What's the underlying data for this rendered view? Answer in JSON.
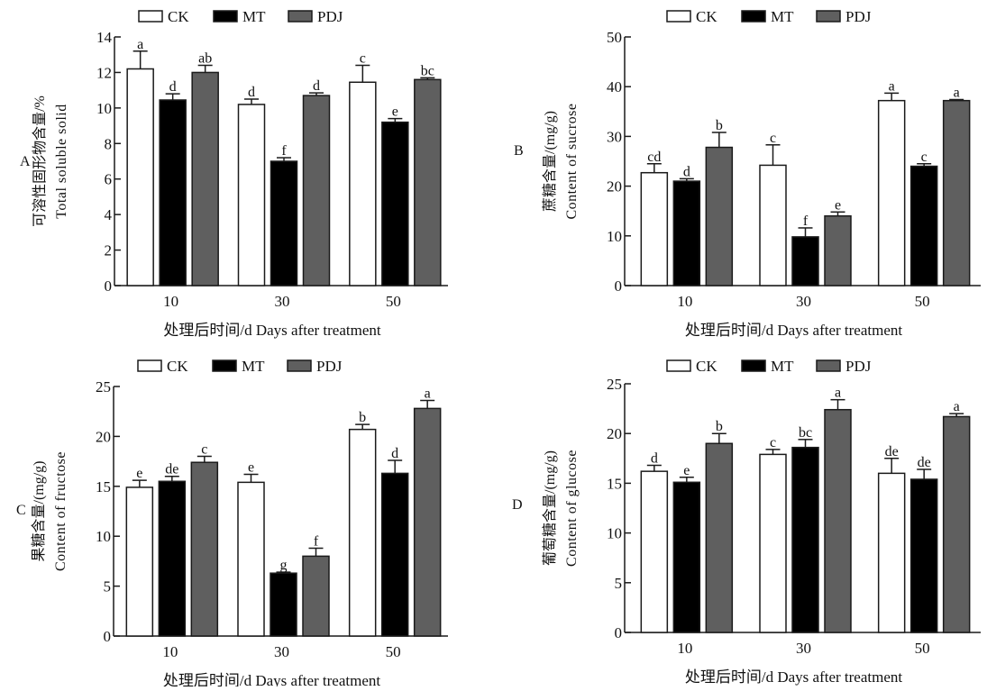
{
  "legend": [
    "CK",
    "MT",
    "PDJ"
  ],
  "colors": {
    "CK": "#ffffff",
    "MT": "#000000",
    "PDJ": "#5f5f5f",
    "stroke": "#1a1a1a"
  },
  "chart_data": [
    {
      "type": "bar",
      "panel": "A",
      "categories": [
        "10",
        "30",
        "50"
      ],
      "xlabel": "处理后时间/d Days after treatment",
      "ylabel_cn": "可溶性固形物含量/%",
      "ylabel_en": "Total soluble solid",
      "ylim": [
        0,
        14
      ],
      "yticks": [
        0,
        2,
        4,
        6,
        8,
        10,
        12,
        14
      ],
      "grid": false,
      "legend_position": "top",
      "series": [
        {
          "name": "CK",
          "values": [
            12.2,
            10.2,
            11.45
          ],
          "error": [
            1.0,
            0.3,
            0.95
          ],
          "letters": [
            "a",
            "d",
            "c"
          ]
        },
        {
          "name": "MT",
          "values": [
            10.45,
            7.0,
            9.2
          ],
          "error": [
            0.35,
            0.2,
            0.2
          ],
          "letters": [
            "d",
            "f",
            "e"
          ]
        },
        {
          "name": "PDJ",
          "values": [
            12.0,
            10.7,
            11.6
          ],
          "error": [
            0.4,
            0.15,
            0.1
          ],
          "letters": [
            "ab",
            "d",
            "bc"
          ]
        }
      ]
    },
    {
      "type": "bar",
      "panel": "B",
      "categories": [
        "10",
        "30",
        "50"
      ],
      "xlabel": "处理后时间/d Days after treatment",
      "ylabel_cn": "蔗糖含量/(mg/g)",
      "ylabel_en": "Content of sucrose",
      "ylim": [
        0,
        50
      ],
      "yticks": [
        0,
        10,
        20,
        30,
        40,
        50
      ],
      "grid": false,
      "legend_position": "top",
      "series": [
        {
          "name": "CK",
          "values": [
            22.7,
            24.2,
            37.2
          ],
          "error": [
            1.8,
            4.1,
            1.5
          ],
          "letters": [
            "cd",
            "c",
            "a"
          ]
        },
        {
          "name": "MT",
          "values": [
            21.0,
            9.8,
            24.0
          ],
          "error": [
            0.5,
            1.8,
            0.5
          ],
          "letters": [
            "d",
            "f",
            "c"
          ]
        },
        {
          "name": "PDJ",
          "values": [
            27.8,
            14.0,
            37.2
          ],
          "error": [
            3.0,
            0.8,
            0.2
          ],
          "letters": [
            "b",
            "e",
            "a"
          ]
        }
      ]
    },
    {
      "type": "bar",
      "panel": "C",
      "categories": [
        "10",
        "30",
        "50"
      ],
      "xlabel": "处理后时间/d Days after treatment",
      "ylabel_cn": "果糖含量/(mg/g)",
      "ylabel_en": "Content of fructose",
      "ylim": [
        0,
        25
      ],
      "yticks": [
        0,
        5,
        10,
        15,
        20,
        25
      ],
      "grid": false,
      "legend_position": "top",
      "series": [
        {
          "name": "CK",
          "values": [
            14.9,
            15.4,
            20.7
          ],
          "error": [
            0.7,
            0.8,
            0.5
          ],
          "letters": [
            "e",
            "e",
            "b"
          ]
        },
        {
          "name": "MT",
          "values": [
            15.5,
            6.3,
            16.3
          ],
          "error": [
            0.5,
            0.1,
            1.3
          ],
          "letters": [
            "de",
            "g",
            "d"
          ]
        },
        {
          "name": "PDJ",
          "values": [
            17.4,
            8.0,
            22.8
          ],
          "error": [
            0.6,
            0.8,
            0.8
          ],
          "letters": [
            "c",
            "f",
            "a"
          ]
        }
      ]
    },
    {
      "type": "bar",
      "panel": "D",
      "categories": [
        "10",
        "30",
        "50"
      ],
      "xlabel": "处理后时间/d Days after treatment",
      "ylabel_cn": "葡萄糖含量/(mg/g)",
      "ylabel_en": "Content of glucose",
      "ylim": [
        0,
        25
      ],
      "yticks": [
        0,
        5,
        10,
        15,
        20,
        25
      ],
      "grid": false,
      "legend_position": "top",
      "series": [
        {
          "name": "CK",
          "values": [
            16.2,
            17.9,
            16.0
          ],
          "error": [
            0.6,
            0.5,
            1.5
          ],
          "letters": [
            "d",
            "c",
            "de"
          ]
        },
        {
          "name": "MT",
          "values": [
            15.1,
            18.6,
            15.4
          ],
          "error": [
            0.5,
            0.8,
            1.0
          ],
          "letters": [
            "e",
            "bc",
            "de"
          ]
        },
        {
          "name": "PDJ",
          "values": [
            19.0,
            22.4,
            21.7
          ],
          "error": [
            1.0,
            1.0,
            0.3
          ],
          "letters": [
            "b",
            "a",
            "a"
          ]
        }
      ]
    }
  ]
}
